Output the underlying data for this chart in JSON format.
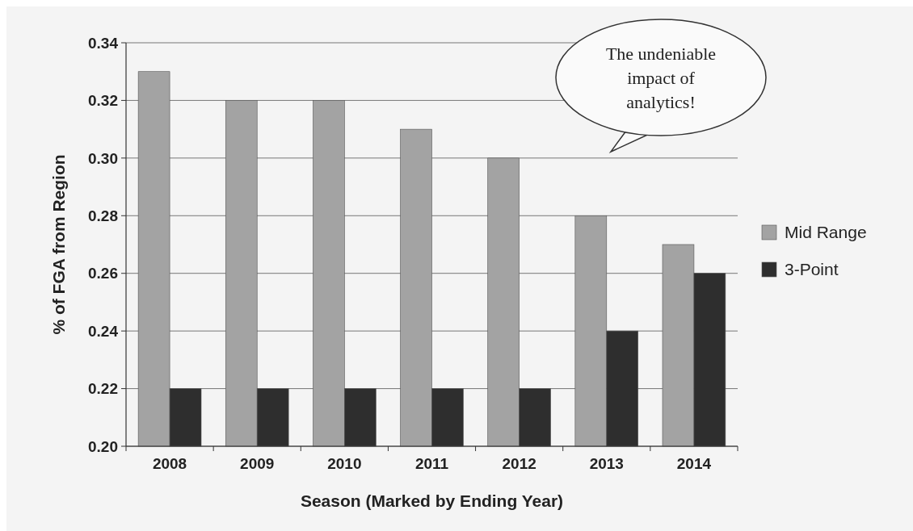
{
  "chart_data": {
    "type": "bar",
    "xlabel": "Season (Marked by Ending Year)",
    "ylabel": "% of FGA from Region",
    "categories": [
      "2008",
      "2009",
      "2010",
      "2011",
      "2012",
      "2013",
      "2014"
    ],
    "series": [
      {
        "name": "Mid Range",
        "color": "#a3a3a3",
        "values": [
          0.33,
          0.32,
          0.32,
          0.31,
          0.3,
          0.28,
          0.27
        ]
      },
      {
        "name": "3-Point",
        "color": "#2e2e2e",
        "values": [
          0.22,
          0.22,
          0.22,
          0.22,
          0.22,
          0.24,
          0.26
        ]
      }
    ],
    "ylim": [
      0.2,
      0.34
    ],
    "yticks": [
      {
        "value": 0.2,
        "label": "0.20"
      },
      {
        "value": 0.22,
        "label": "0.22"
      },
      {
        "value": 0.24,
        "label": "0.24"
      },
      {
        "value": 0.26,
        "label": "0.26"
      },
      {
        "value": 0.28,
        "label": "0.28"
      },
      {
        "value": 0.3,
        "label": "0.30"
      },
      {
        "value": 0.32,
        "label": "0.32"
      },
      {
        "value": 0.34,
        "label": "0.34"
      }
    ],
    "grid": "y",
    "legend": "right",
    "annotations": [
      "The undeniable impact of analytics!"
    ]
  }
}
